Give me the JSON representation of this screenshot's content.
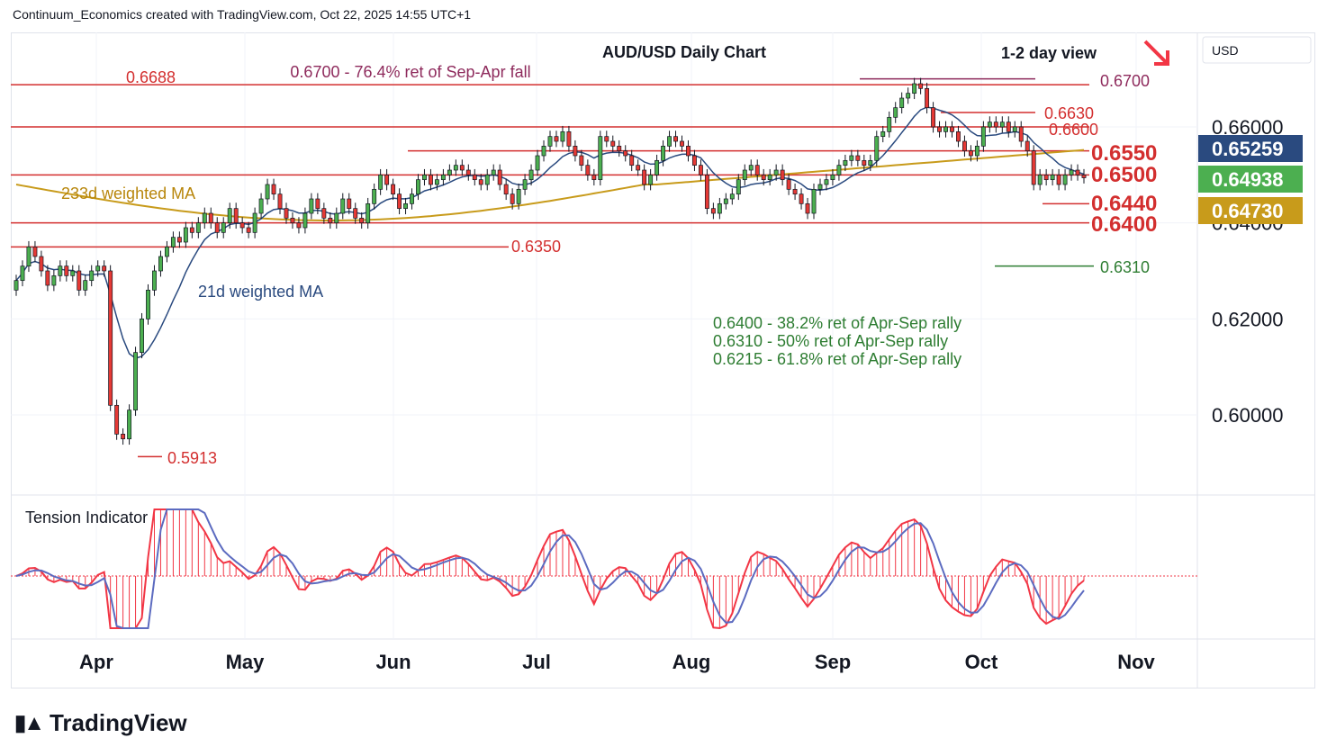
{
  "header": "Continuum_Economics created with TradingView.com, Oct 22, 2025 14:55 UTC+1",
  "title": "AUD/USD Daily Chart",
  "view_label": "1-2 day view",
  "view_arrow_color": "#f23645",
  "currency": "USD",
  "price_ticks": [
    "0.66000",
    "0.64000",
    "0.62000",
    "0.60000"
  ],
  "price_badges": [
    {
      "value": "0.65259",
      "bg": "#2a4a7f"
    },
    {
      "value": "0.64938",
      "bg": "#4caf50"
    },
    {
      "value": "0.64730",
      "bg": "#c89b1b"
    }
  ],
  "month_labels": [
    "Apr",
    "May",
    "Jun",
    "Jul",
    "Aug",
    "Sep",
    "Oct",
    "Nov"
  ],
  "levels": [
    {
      "label": "0.6700",
      "value": 0.67,
      "color": "#8e2a5c"
    },
    {
      "label": "0.6688",
      "value": 0.6688,
      "color": "#d32f2f"
    },
    {
      "label": "0.6630",
      "value": 0.663,
      "color": "#d32f2f"
    },
    {
      "label": "0.6600",
      "value": 0.66,
      "color": "#d32f2f"
    },
    {
      "label": "0.6550",
      "value": 0.655,
      "color": "#d32f2f"
    },
    {
      "label": "0.6500",
      "value": 0.65,
      "color": "#d32f2f"
    },
    {
      "label": "0.6440",
      "value": 0.644,
      "color": "#d32f2f"
    },
    {
      "label": "0.6400",
      "value": 0.64,
      "color": "#d32f2f"
    },
    {
      "label": "0.6350",
      "value": 0.635,
      "color": "#d32f2f"
    },
    {
      "label": "0.6310",
      "value": 0.631,
      "color": "#2e7d32"
    },
    {
      "label": "0.5913",
      "value": 0.5913,
      "color": "#d32f2f"
    }
  ],
  "annotations": {
    "fall_ret": "0.6700 - 76.4% ret of Sep-Apr fall",
    "ma233": "233d weighted MA",
    "ma21": "21d weighted MA",
    "rallies": [
      "0.6400 - 38.2% ret of Apr-Sep rally",
      "0.6310 - 50% ret of Apr-Sep rally",
      "0.6215 - 61.8% ret of Apr-Sep rally"
    ]
  },
  "indicator": {
    "title": "Tension Indicator"
  },
  "brand": "TradingView",
  "chart_data": {
    "type": "candlestick",
    "title": "AUD/USD Daily Chart",
    "y_range": [
      0.584,
      0.685
    ],
    "x_months": [
      "Apr",
      "May",
      "Jun",
      "Jul",
      "Aug",
      "Sep",
      "Oct",
      "Nov"
    ],
    "series": [
      {
        "name": "AUD/USD",
        "approx_closes": [
          0.628,
          0.631,
          0.635,
          0.633,
          0.63,
          0.627,
          0.629,
          0.631,
          0.629,
          0.63,
          0.626,
          0.628,
          0.63,
          0.631,
          0.63,
          0.602,
          0.596,
          0.595,
          0.601,
          0.613,
          0.62,
          0.626,
          0.63,
          0.633,
          0.635,
          0.637,
          0.636,
          0.639,
          0.638,
          0.64,
          0.642,
          0.64,
          0.638,
          0.64,
          0.643,
          0.64,
          0.639,
          0.638,
          0.642,
          0.645,
          0.648,
          0.646,
          0.643,
          0.641,
          0.64,
          0.639,
          0.642,
          0.645,
          0.643,
          0.641,
          0.64,
          0.642,
          0.645,
          0.643,
          0.641,
          0.64,
          0.644,
          0.647,
          0.65,
          0.648,
          0.646,
          0.643,
          0.644,
          0.646,
          0.649,
          0.65,
          0.648,
          0.649,
          0.65,
          0.651,
          0.652,
          0.651,
          0.65,
          0.649,
          0.648,
          0.65,
          0.651,
          0.648,
          0.646,
          0.644,
          0.647,
          0.649,
          0.651,
          0.654,
          0.656,
          0.658,
          0.657,
          0.659,
          0.656,
          0.654,
          0.652,
          0.65,
          0.649,
          0.658,
          0.657,
          0.656,
          0.655,
          0.654,
          0.652,
          0.651,
          0.648,
          0.65,
          0.653,
          0.656,
          0.658,
          0.657,
          0.656,
          0.654,
          0.652,
          0.65,
          0.643,
          0.642,
          0.644,
          0.645,
          0.646,
          0.649,
          0.651,
          0.652,
          0.65,
          0.649,
          0.65,
          0.651,
          0.649,
          0.647,
          0.646,
          0.644,
          0.642,
          0.647,
          0.648,
          0.649,
          0.65,
          0.652,
          0.653,
          0.654,
          0.653,
          0.652,
          0.653,
          0.658,
          0.659,
          0.662,
          0.664,
          0.666,
          0.667,
          0.669,
          0.668,
          0.664,
          0.66,
          0.659,
          0.66,
          0.659,
          0.657,
          0.655,
          0.654,
          0.656,
          0.66,
          0.661,
          0.66,
          0.661,
          0.659,
          0.66,
          0.657,
          0.655,
          0.648,
          0.65,
          0.649,
          0.65,
          0.648,
          0.65,
          0.651,
          0.65,
          0.6494
        ]
      },
      {
        "name": "21d weighted MA",
        "approx_last": 0.65259
      },
      {
        "name": "233d weighted MA",
        "approx_last": 0.6473
      }
    ],
    "last_price": 0.64938
  }
}
